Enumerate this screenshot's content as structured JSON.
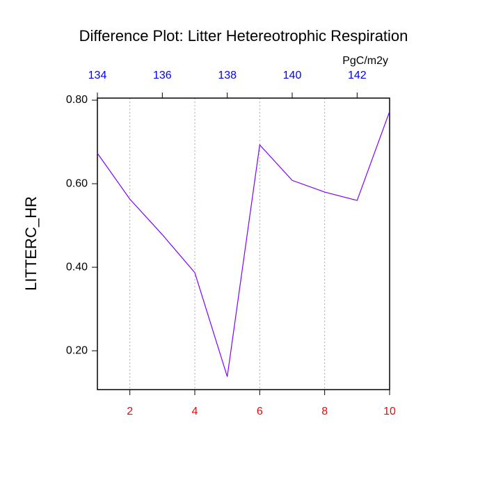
{
  "chart_data": {
    "type": "line",
    "title": "Difference Plot: Litter Hetereotrophic Respiration",
    "y_label": "LITTERC_HR",
    "x2_label": "PgC/m2y",
    "x": [
      1,
      2,
      3,
      4,
      5,
      6,
      7,
      8,
      9,
      10
    ],
    "series": [
      {
        "color": "#7f00ff",
        "values": [
          0.673,
          0.563,
          0.478,
          0.387,
          0.138,
          0.693,
          0.608,
          0.58,
          0.56,
          0.773
        ]
      }
    ],
    "xlim": [
      1,
      10
    ],
    "xticks": [
      2,
      4,
      6,
      8,
      10
    ],
    "xtick_color": "#ff0000",
    "x2lim": [
      134,
      143
    ],
    "x2ticks": [
      134,
      136,
      138,
      140,
      142
    ],
    "x2tick_color": "#0000ff",
    "ylim": [
      0.107,
      0.805
    ],
    "yticks": [
      {
        "value": 0.2,
        "label": "0.20"
      },
      {
        "value": 0.4,
        "label": "0.40"
      },
      {
        "value": 0.6,
        "label": "0.60"
      },
      {
        "value": 0.8,
        "label": "0.80"
      }
    ],
    "grid": true
  }
}
